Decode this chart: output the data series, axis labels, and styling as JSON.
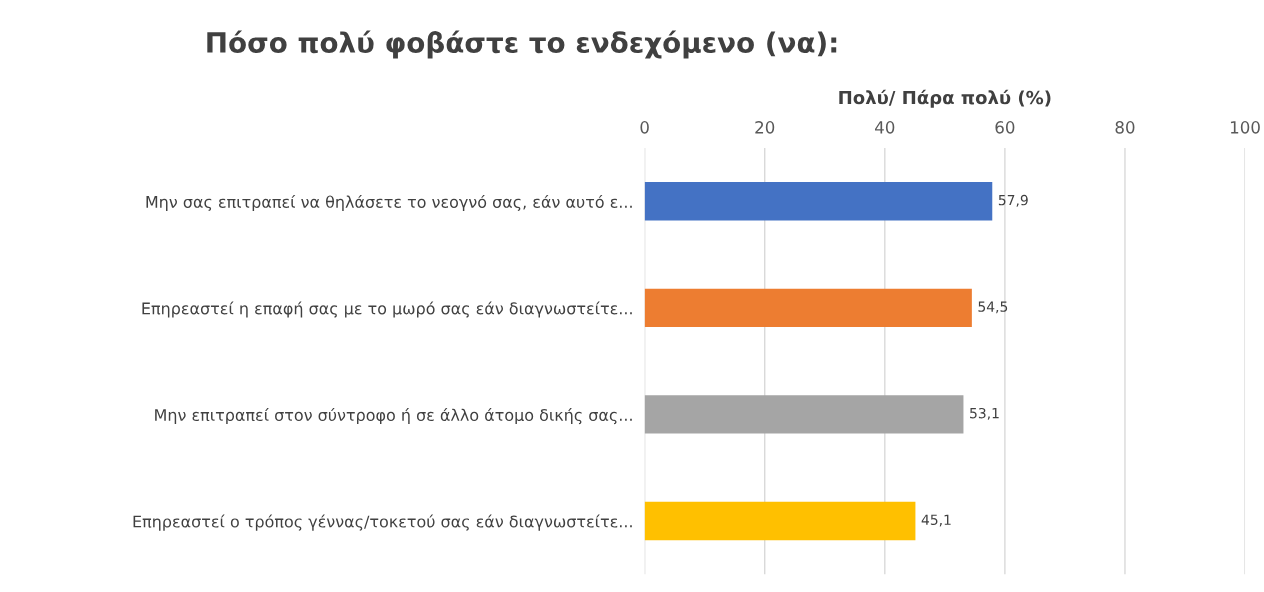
{
  "chart_data": {
    "type": "bar",
    "orientation": "horizontal",
    "title": "Πόσο πολύ φοβάστε το ενδεχόμενο (να):",
    "xlabel": "Πολύ/ Πάρα πολύ (%)",
    "categories": [
      "Μην σας επιτραπεί να θηλάσετε το νεογνό σας, εάν αυτό ε...",
      "Επηρεαστεί η επαφή σας με το μωρό σας εάν διαγνωστείτε...",
      "Μην επιτραπεί στον σύντροφο ή σε άλλο άτομο δικής σας...",
      "Επηρεαστεί ο τρόπος γέννας/τοκετού σας εάν διαγνωστείτε..."
    ],
    "values": [
      57.9,
      54.5,
      53.1,
      45.1
    ],
    "colors": [
      "#4472c4",
      "#ed7d31",
      "#a5a5a5",
      "#ffc000"
    ],
    "value_labels": [
      "57,9",
      "54,5",
      "53,1",
      "45,1"
    ],
    "xlim": [
      0,
      100
    ],
    "xticks": [
      0,
      20,
      40,
      60,
      80,
      100
    ],
    "grid": "x",
    "legend": false
  }
}
